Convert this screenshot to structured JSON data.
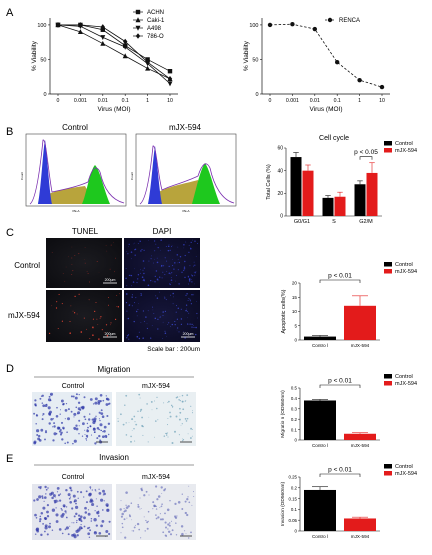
{
  "panels": {
    "A": "A",
    "B": "B",
    "C": "C",
    "D": "D",
    "E": "E"
  },
  "viability": {
    "ylabel": "% Viability",
    "xlabel": "Virus (MOI)",
    "yticks": [
      "0",
      "50",
      "100"
    ],
    "xticks": [
      "0",
      "0.001",
      "0.01",
      "0.1",
      "1",
      "10"
    ]
  },
  "flow": {
    "control_label": "Control",
    "treated_label": "mJX-594",
    "axis_y": "Count",
    "axis_x": "PE-A"
  },
  "micro": {
    "tunel_label": "TUNEL",
    "dapi_label": "DAPI",
    "row1": "Control",
    "row2": "mJX-594",
    "scalebar_text": "200μm",
    "scale_note": "Scale bar : 200um"
  },
  "transwell": {
    "migration_title": "Migration",
    "invasion_title": "Invasion",
    "control_label": "Control",
    "treated_label": "mJX-594",
    "scalebar_text": "200μm"
  },
  "colors": {
    "control": "#000000",
    "treated": "#e31b1b",
    "flow_purple": "#7b2fb0",
    "flow_green": "#1ec81e",
    "flow_olive": "#b8a43c",
    "flow_blue": "#2f3bd6"
  },
  "chart_data": [
    {
      "id": "A-left",
      "type": "line",
      "xlabel": "Virus (MOI)",
      "ylabel": "% Viability",
      "x": [
        "0",
        "0.001",
        "0.01",
        "0.1",
        "1",
        "10"
      ],
      "ylim": [
        0,
        110
      ],
      "legend_position": "top-right",
      "series": [
        {
          "name": "ACHN",
          "marker": "square",
          "values": [
            100,
            100,
            93,
            70,
            50,
            33
          ]
        },
        {
          "name": "Caki-1",
          "marker": "triangle-up",
          "values": [
            100,
            90,
            73,
            55,
            37,
            22
          ]
        },
        {
          "name": "A498",
          "marker": "triangle-down",
          "values": [
            100,
            98,
            82,
            68,
            44,
            15
          ]
        },
        {
          "name": "786-O",
          "marker": "diamond",
          "values": [
            100,
            100,
            97,
            76,
            46,
            22
          ]
        }
      ]
    },
    {
      "id": "A-right",
      "type": "line",
      "xlabel": "Virus (MOI)",
      "ylabel": "% Viability",
      "x": [
        "0",
        "0.001",
        "0.01",
        "0.1",
        "1",
        "10"
      ],
      "ylim": [
        0,
        110
      ],
      "legend_position": "top-right",
      "series": [
        {
          "name": "RENCA",
          "marker": "circle",
          "dashed": true,
          "values": [
            100,
            101,
            94,
            46,
            20,
            10
          ]
        }
      ]
    },
    {
      "id": "B-cellcycle",
      "type": "bar",
      "title": "Cell cycle",
      "ylabel": "Total Cells (%)",
      "categories": [
        "G0/G1",
        "S",
        "G2/M"
      ],
      "ylim": [
        0,
        60
      ],
      "yticks": [
        0,
        20,
        40,
        60
      ],
      "legend_position": "top-right",
      "series": [
        {
          "name": "Control",
          "values": [
            52,
            16,
            28
          ],
          "errors": [
            4,
            2,
            3
          ]
        },
        {
          "name": "mJX-594",
          "values": [
            40,
            17,
            38
          ],
          "errors": [
            5,
            4,
            9
          ]
        }
      ],
      "annotation": "p < 0.05"
    },
    {
      "id": "C-apoptosis",
      "type": "bar",
      "ylabel": "Apoptotic cells(%)",
      "categories": [
        "Contro l",
        "mJX-594"
      ],
      "ylim": [
        0,
        20
      ],
      "yticks": [
        0,
        5,
        10,
        15,
        20
      ],
      "legend_position": "top-right",
      "series": [
        {
          "name": "Control",
          "values": [
            1.2,
            null
          ],
          "errors": [
            0.4,
            null
          ]
        },
        {
          "name": "mJX-594",
          "values": [
            null,
            12
          ],
          "errors": [
            null,
            3.5
          ]
        }
      ],
      "annotation": "p < 0.01"
    },
    {
      "id": "D-migration",
      "type": "bar",
      "ylabel": "Migratio n (OD560nm)",
      "categories": [
        "Contro l",
        "mJX-594"
      ],
      "ylim": [
        0,
        0.5
      ],
      "yticks": [
        0.0,
        0.1,
        0.2,
        0.3,
        0.4,
        0.5
      ],
      "legend_position": "top-right",
      "series": [
        {
          "name": "Control",
          "values": [
            0.38,
            null
          ],
          "errors": [
            0.01,
            null
          ]
        },
        {
          "name": "mJX-594",
          "values": [
            null,
            0.06
          ],
          "errors": [
            null,
            0.01
          ]
        }
      ],
      "annotation": "p < 0.01"
    },
    {
      "id": "E-invasion",
      "type": "bar",
      "ylabel": "Invasion (OD560nm)",
      "categories": [
        "Contro l",
        "mJX-594"
      ],
      "ylim": [
        0,
        0.25
      ],
      "yticks": [
        0.0,
        0.05,
        0.1,
        0.15,
        0.2,
        0.25
      ],
      "legend_position": "top-right",
      "series": [
        {
          "name": "Control",
          "values": [
            0.19,
            null
          ],
          "errors": [
            0.015,
            null
          ]
        },
        {
          "name": "mJX-594",
          "values": [
            null,
            0.058
          ],
          "errors": [
            null,
            0.006
          ]
        }
      ],
      "annotation": "p < 0.01"
    }
  ]
}
